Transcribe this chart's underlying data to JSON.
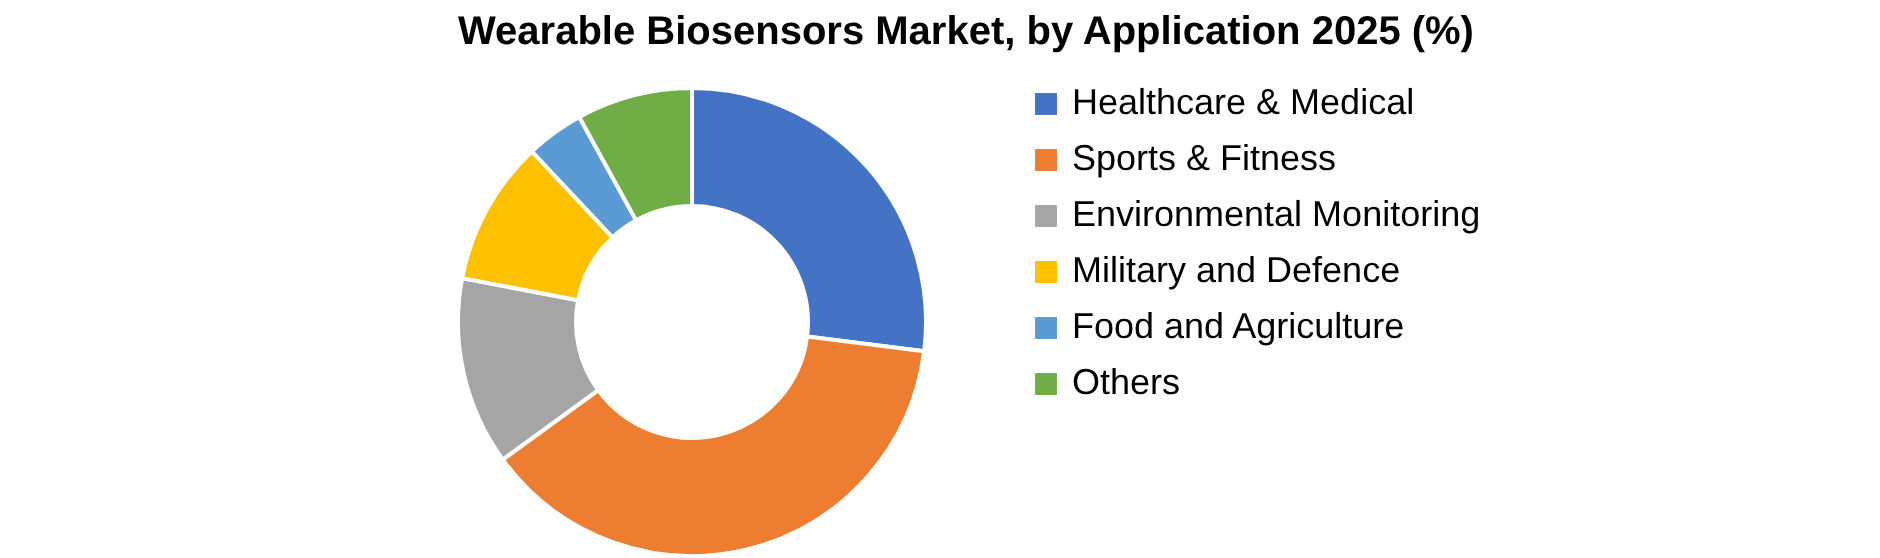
{
  "chart_data": {
    "type": "donut",
    "title": "Wearable Biosensors Market, by Application 2025 (%)",
    "categories": [
      "Healthcare & Medical",
      "Sports & Fitness",
      "Environmental Monitoring",
      "Military and Defence",
      "Food and Agriculture",
      "Others"
    ],
    "values": [
      27,
      38,
      13,
      10,
      4,
      8
    ],
    "colors": [
      "#4472c4",
      "#ed7d31",
      "#a5a5a5",
      "#ffc000",
      "#5b9bd5",
      "#70ad47"
    ],
    "legend": "right"
  }
}
